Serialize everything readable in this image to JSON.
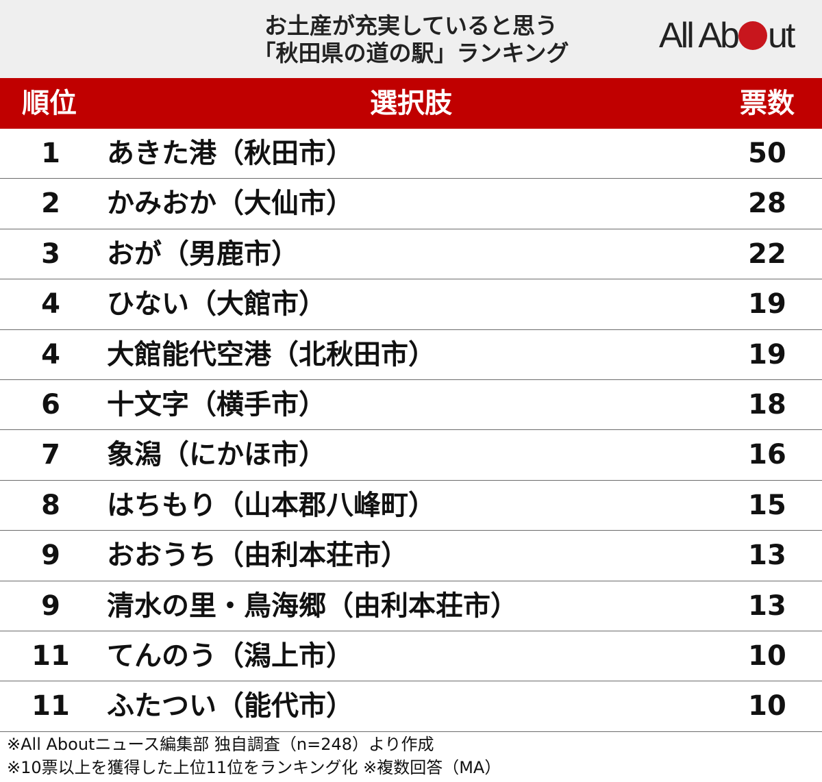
{
  "header": {
    "title_line1": "お土産が充実していると思う",
    "title_line2": "「秋田県の道の駅」ランキング",
    "logo_before": "All Ab",
    "logo_after": "ut",
    "logo_accent_color": "#c8161d"
  },
  "table": {
    "columns": {
      "rank": "順位",
      "choice": "選択肢",
      "votes": "票数"
    },
    "header_color": "#c00000",
    "rows": [
      {
        "rank": "1",
        "name": "あきた港（秋田市）",
        "votes": "50"
      },
      {
        "rank": "2",
        "name": "かみおか（大仙市）",
        "votes": "28"
      },
      {
        "rank": "3",
        "name": "おが（男鹿市）",
        "votes": "22"
      },
      {
        "rank": "4",
        "name": "ひない（大館市）",
        "votes": "19"
      },
      {
        "rank": "4",
        "name": "大館能代空港（北秋田市）",
        "votes": "19"
      },
      {
        "rank": "6",
        "name": "十文字（横手市）",
        "votes": "18"
      },
      {
        "rank": "7",
        "name": "象潟（にかほ市）",
        "votes": "16"
      },
      {
        "rank": "8",
        "name": "はちもり（山本郡八峰町）",
        "votes": "15"
      },
      {
        "rank": "9",
        "name": "おおうち（由利本荘市）",
        "votes": "13"
      },
      {
        "rank": "9",
        "name": "清水の里・鳥海郷（由利本荘市）",
        "votes": "13"
      },
      {
        "rank": "11",
        "name": "てんのう（潟上市）",
        "votes": "10"
      },
      {
        "rank": "11",
        "name": "ふたつい（能代市）",
        "votes": "10"
      }
    ]
  },
  "notes": {
    "line1": "※All Aboutニュース編集部 独自調査（n=248）より作成",
    "line2": "※10票以上を獲得した上位11位をランキング化 ※複数回答（MA）"
  }
}
